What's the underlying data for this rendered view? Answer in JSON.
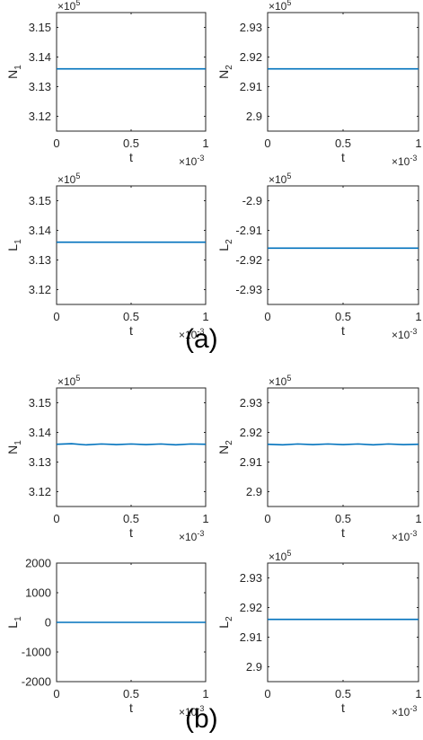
{
  "panel_labels": [
    "(a)",
    "(b)"
  ],
  "line_color": "#0072BD",
  "chart_data": [
    {
      "type": "line",
      "group": "(a)",
      "xlabel": "t",
      "ylabel_main": "N",
      "ylabel_sub": "1",
      "x_exponent": "-3",
      "y_exponent": "5",
      "xlim": [
        0,
        1
      ],
      "ylim": [
        3.115,
        3.155
      ],
      "xticks": [
        0,
        0.5,
        1
      ],
      "xtick_labels": [
        "0",
        "0.5",
        "1"
      ],
      "yticks": [
        3.12,
        3.13,
        3.14,
        3.15
      ],
      "ytick_labels": [
        "3.12",
        "3.13",
        "3.14",
        "3.15"
      ],
      "grid": false,
      "series": [
        {
          "x": [
            0,
            1
          ],
          "y": [
            3.136,
            3.136
          ]
        }
      ]
    },
    {
      "type": "line",
      "group": "(a)",
      "xlabel": "t",
      "ylabel_main": "N",
      "ylabel_sub": "2",
      "x_exponent": "-3",
      "y_exponent": "5",
      "xlim": [
        0,
        1
      ],
      "ylim": [
        2.895,
        2.935
      ],
      "xticks": [
        0,
        0.5,
        1
      ],
      "xtick_labels": [
        "0",
        "0.5",
        "1"
      ],
      "yticks": [
        2.9,
        2.91,
        2.92,
        2.93
      ],
      "ytick_labels": [
        "2.9",
        "2.91",
        "2.92",
        "2.93"
      ],
      "grid": false,
      "series": [
        {
          "x": [
            0,
            1
          ],
          "y": [
            2.916,
            2.916
          ]
        }
      ]
    },
    {
      "type": "line",
      "group": "(a)",
      "xlabel": "t",
      "ylabel_main": "L",
      "ylabel_sub": "1",
      "x_exponent": "-3",
      "y_exponent": "5",
      "xlim": [
        0,
        1
      ],
      "ylim": [
        3.115,
        3.155
      ],
      "xticks": [
        0,
        0.5,
        1
      ],
      "xtick_labels": [
        "0",
        "0.5",
        "1"
      ],
      "yticks": [
        3.12,
        3.13,
        3.14,
        3.15
      ],
      "ytick_labels": [
        "3.12",
        "3.13",
        "3.14",
        "3.15"
      ],
      "grid": false,
      "series": [
        {
          "x": [
            0,
            1
          ],
          "y": [
            3.136,
            3.136
          ]
        }
      ]
    },
    {
      "type": "line",
      "group": "(a)",
      "xlabel": "t",
      "ylabel_main": "L",
      "ylabel_sub": "2",
      "x_exponent": "-3",
      "y_exponent": "5",
      "xlim": [
        0,
        1
      ],
      "ylim": [
        -2.935,
        -2.895
      ],
      "xticks": [
        0,
        0.5,
        1
      ],
      "xtick_labels": [
        "0",
        "0.5",
        "1"
      ],
      "yticks": [
        -2.93,
        -2.92,
        -2.91,
        -2.9
      ],
      "ytick_labels": [
        "-2.93",
        "-2.92",
        "-2.91",
        "-2.9"
      ],
      "grid": false,
      "series": [
        {
          "x": [
            0,
            1
          ],
          "y": [
            -2.916,
            -2.916
          ]
        }
      ]
    },
    {
      "type": "line",
      "group": "(b)",
      "xlabel": "t",
      "ylabel_main": "N",
      "ylabel_sub": "1",
      "x_exponent": "-3",
      "y_exponent": "5",
      "xlim": [
        0,
        1
      ],
      "ylim": [
        3.115,
        3.155
      ],
      "xticks": [
        0,
        0.5,
        1
      ],
      "xtick_labels": [
        "0",
        "0.5",
        "1"
      ],
      "yticks": [
        3.12,
        3.13,
        3.14,
        3.15
      ],
      "ytick_labels": [
        "3.12",
        "3.13",
        "3.14",
        "3.15"
      ],
      "grid": false,
      "series": [
        {
          "x": [
            0,
            0.1,
            0.2,
            0.3,
            0.4,
            0.5,
            0.6,
            0.7,
            0.8,
            0.9,
            1
          ],
          "y": [
            3.136,
            3.1362,
            3.1358,
            3.1361,
            3.1359,
            3.1361,
            3.1359,
            3.1361,
            3.1358,
            3.1361,
            3.136
          ]
        }
      ]
    },
    {
      "type": "line",
      "group": "(b)",
      "xlabel": "t",
      "ylabel_main": "N",
      "ylabel_sub": "2",
      "x_exponent": "-3",
      "y_exponent": "5",
      "xlim": [
        0,
        1
      ],
      "ylim": [
        2.895,
        2.935
      ],
      "xticks": [
        0,
        0.5,
        1
      ],
      "xtick_labels": [
        "0",
        "0.5",
        "1"
      ],
      "yticks": [
        2.9,
        2.91,
        2.92,
        2.93
      ],
      "ytick_labels": [
        "2.9",
        "2.91",
        "2.92",
        "2.93"
      ],
      "grid": false,
      "series": [
        {
          "x": [
            0,
            0.1,
            0.2,
            0.3,
            0.4,
            0.5,
            0.6,
            0.7,
            0.8,
            0.9,
            1
          ],
          "y": [
            2.916,
            2.9158,
            2.9161,
            2.9159,
            2.9161,
            2.9159,
            2.9161,
            2.9158,
            2.9161,
            2.9159,
            2.916
          ]
        }
      ]
    },
    {
      "type": "line",
      "group": "(b)",
      "xlabel": "t",
      "ylabel_main": "L",
      "ylabel_sub": "1",
      "x_exponent": "-3",
      "y_exponent": "",
      "xlim": [
        0,
        1
      ],
      "ylim": [
        -2000,
        2000
      ],
      "xticks": [
        0,
        0.5,
        1
      ],
      "xtick_labels": [
        "0",
        "0.5",
        "1"
      ],
      "yticks": [
        -2000,
        -1000,
        0,
        1000,
        2000
      ],
      "ytick_labels": [
        "-2000",
        "-1000",
        "0",
        "1000",
        "2000"
      ],
      "grid": false,
      "series": [
        {
          "x": [
            0,
            1
          ],
          "y": [
            0,
            0
          ]
        }
      ]
    },
    {
      "type": "line",
      "group": "(b)",
      "xlabel": "t",
      "ylabel_main": "L",
      "ylabel_sub": "2",
      "x_exponent": "-3",
      "y_exponent": "5",
      "xlim": [
        0,
        1
      ],
      "ylim": [
        2.895,
        2.935
      ],
      "xticks": [
        0,
        0.5,
        1
      ],
      "xtick_labels": [
        "0",
        "0.5",
        "1"
      ],
      "yticks": [
        2.9,
        2.91,
        2.92,
        2.93
      ],
      "ytick_labels": [
        "2.9",
        "2.91",
        "2.92",
        "2.93"
      ],
      "grid": false,
      "series": [
        {
          "x": [
            0,
            1
          ],
          "y": [
            2.916,
            2.916
          ]
        }
      ]
    }
  ]
}
